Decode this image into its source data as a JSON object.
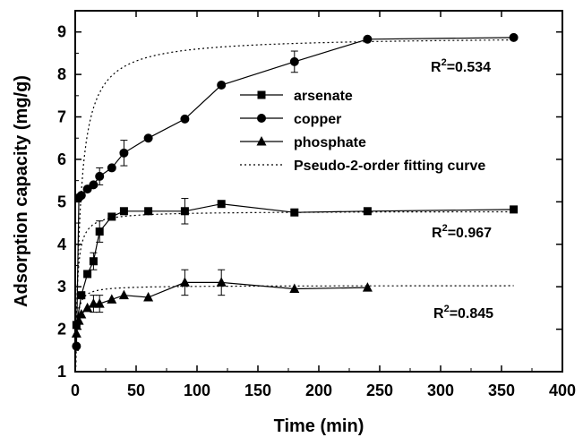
{
  "chart_data": {
    "type": "line",
    "title": "",
    "xlabel": "Time (min)",
    "ylabel": "Adsorption capacity (mg/g)",
    "xlim": [
      0,
      400
    ],
    "ylim": [
      1,
      9.5
    ],
    "xticks": [
      0,
      50,
      100,
      150,
      200,
      250,
      300,
      350,
      400
    ],
    "yticks": [
      1,
      2,
      3,
      4,
      5,
      6,
      7,
      8,
      9
    ],
    "grid": false,
    "legend_position": "upper-center",
    "series": [
      {
        "name": "arsenate",
        "marker": "square",
        "x": [
          1,
          5,
          10,
          15,
          20,
          30,
          40,
          60,
          90,
          120,
          180,
          240,
          360
        ],
        "y": [
          2.1,
          2.8,
          3.3,
          3.6,
          4.3,
          4.65,
          4.78,
          4.78,
          4.78,
          4.95,
          4.75,
          4.78,
          4.82
        ],
        "error": [
          0,
          0,
          0,
          0.2,
          0.25,
          0,
          0,
          0,
          0.3,
          0,
          0,
          0,
          0
        ]
      },
      {
        "name": "copper",
        "marker": "circle",
        "x": [
          1,
          3,
          5,
          10,
          15,
          20,
          30,
          40,
          60,
          90,
          120,
          180,
          240,
          360
        ],
        "y": [
          1.6,
          5.1,
          5.15,
          5.3,
          5.4,
          5.6,
          5.8,
          6.15,
          6.5,
          6.95,
          7.75,
          8.3,
          8.83,
          8.87
        ],
        "error": [
          0,
          0,
          0,
          0,
          0,
          0.2,
          0,
          0.3,
          0,
          0,
          0,
          0.25,
          0,
          0
        ]
      },
      {
        "name": "phosphate",
        "marker": "triangle",
        "x": [
          1,
          3,
          5,
          10,
          15,
          20,
          30,
          40,
          60,
          90,
          120,
          180,
          240
        ],
        "y": [
          1.9,
          2.2,
          2.35,
          2.5,
          2.6,
          2.6,
          2.7,
          2.8,
          2.75,
          3.1,
          3.1,
          2.95,
          2.98
        ],
        "error": [
          0,
          0,
          0,
          0,
          0.2,
          0.2,
          0,
          0,
          0,
          0.3,
          0.3,
          0,
          0
        ]
      }
    ],
    "fits": [
      {
        "name": "Pseudo-2-order fitting curve",
        "for": "copper",
        "qe": 8.9,
        "k2": 0.032,
        "r2_label": "R",
        "r2_sup": "2",
        "r2_value": "=0.534"
      },
      {
        "name": "Pseudo-2-order fitting curve",
        "for": "arsenate",
        "qe": 4.78,
        "k2": 0.2,
        "r2_label": "R",
        "r2_sup": "2",
        "r2_value": "=0.967"
      },
      {
        "name": "Pseudo-2-order fitting curve",
        "for": "phosphate",
        "qe": 3.03,
        "k2": 0.45,
        "r2_label": "R",
        "r2_sup": "2",
        "r2_value": "=0.845"
      }
    ],
    "legend": [
      {
        "label": "arsenate",
        "marker": "square"
      },
      {
        "label": "copper",
        "marker": "circle"
      },
      {
        "label": "phosphate",
        "marker": "triangle"
      },
      {
        "label": "Pseudo-2-order fitting curve",
        "marker": "dotted-line"
      }
    ]
  }
}
